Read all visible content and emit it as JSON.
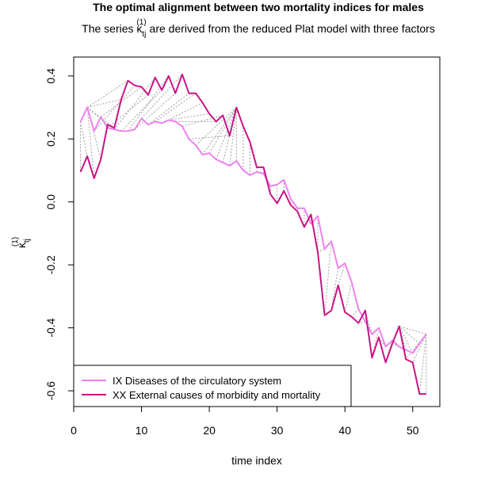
{
  "chart_data": {
    "type": "line",
    "title": "The optimal alignment between two mortality indices for males",
    "subtitle_prefix": "The series ",
    "subtitle_suffix": " are derived from the reduced Plat model with three factors",
    "kappa_symbol": "κ",
    "kappa_subscript": "tj",
    "kappa_superscript": "(1)",
    "xlabel": "time index",
    "xlim": [
      0,
      54
    ],
    "ylim": [
      -0.65,
      0.46
    ],
    "xticks": [
      0,
      10,
      20,
      30,
      40,
      50
    ],
    "yticks": [
      -0.6,
      -0.4,
      -0.2,
      0.0,
      0.2,
      0.4
    ],
    "ytick_labels": [
      "-0.6",
      "-0.4",
      "-0.2",
      "0.0",
      "0.2",
      "0.4"
    ],
    "grid": false,
    "legend_position": "bottom-left",
    "series": [
      {
        "name": "IX Diseases of the circulatory system",
        "color": "#ee82ee",
        "x": [
          1,
          2,
          3,
          4,
          5,
          6,
          7,
          8,
          9,
          10,
          11,
          12,
          13,
          14,
          15,
          16,
          17,
          18,
          19,
          20,
          21,
          22,
          23,
          24,
          25,
          26,
          27,
          28,
          29,
          30,
          31,
          32,
          33,
          34,
          35,
          36,
          37,
          38,
          39,
          40,
          41,
          42,
          43,
          44,
          45,
          46,
          47,
          48,
          49,
          50,
          51,
          52
        ],
        "values": [
          0.255,
          0.3,
          0.225,
          0.27,
          0.235,
          0.23,
          0.225,
          0.225,
          0.23,
          0.265,
          0.245,
          0.255,
          0.25,
          0.26,
          0.255,
          0.24,
          0.2,
          0.18,
          0.15,
          0.155,
          0.135,
          0.125,
          0.115,
          0.13,
          0.1,
          0.085,
          0.095,
          0.09,
          0.05,
          0.055,
          0.07,
          0.01,
          -0.02,
          -0.02,
          -0.07,
          -0.045,
          -0.15,
          -0.125,
          -0.21,
          -0.195,
          -0.255,
          -0.34,
          -0.38,
          -0.42,
          -0.4,
          -0.46,
          -0.44,
          -0.46,
          -0.47,
          -0.48,
          -0.45,
          -0.42
        ]
      },
      {
        "name": "XX External causes of morbidity and mortality",
        "color": "#c71585",
        "x": [
          1,
          2,
          3,
          4,
          5,
          6,
          7,
          8,
          9,
          10,
          11,
          12,
          13,
          14,
          15,
          16,
          17,
          18,
          19,
          20,
          21,
          22,
          23,
          24,
          25,
          26,
          27,
          28,
          29,
          30,
          31,
          32,
          33,
          34,
          35,
          36,
          37,
          38,
          39,
          40,
          41,
          42,
          43,
          44,
          45,
          46,
          47,
          48,
          49,
          50,
          51,
          52
        ],
        "values": [
          0.095,
          0.145,
          0.075,
          0.135,
          0.245,
          0.235,
          0.325,
          0.385,
          0.37,
          0.365,
          0.34,
          0.395,
          0.355,
          0.4,
          0.345,
          0.405,
          0.345,
          0.345,
          0.315,
          0.28,
          0.255,
          0.275,
          0.21,
          0.3,
          0.24,
          0.19,
          0.11,
          0.11,
          0.025,
          -0.005,
          0.035,
          -0.01,
          -0.03,
          -0.08,
          -0.04,
          -0.16,
          -0.36,
          -0.345,
          -0.265,
          -0.35,
          -0.365,
          -0.385,
          -0.345,
          -0.495,
          -0.43,
          -0.51,
          -0.45,
          -0.395,
          -0.5,
          -0.51,
          -0.61,
          -0.61
        ]
      }
    ],
    "alignment_pairs": [
      [
        1,
        1
      ],
      [
        1,
        2
      ],
      [
        2,
        3
      ],
      [
        2,
        4
      ],
      [
        2,
        5
      ],
      [
        2,
        6
      ],
      [
        2,
        7
      ],
      [
        2,
        8
      ],
      [
        3,
        9
      ],
      [
        4,
        10
      ],
      [
        5,
        11
      ],
      [
        6,
        12
      ],
      [
        7,
        13
      ],
      [
        8,
        14
      ],
      [
        9,
        15
      ],
      [
        10,
        16
      ],
      [
        11,
        17
      ],
      [
        12,
        18
      ],
      [
        13,
        19
      ],
      [
        14,
        20
      ],
      [
        15,
        21
      ],
      [
        16,
        22
      ],
      [
        17,
        23
      ],
      [
        18,
        24
      ],
      [
        19,
        24
      ],
      [
        20,
        24
      ],
      [
        21,
        24
      ],
      [
        22,
        24
      ],
      [
        23,
        24
      ],
      [
        24,
        24
      ],
      [
        25,
        25
      ],
      [
        26,
        26
      ],
      [
        27,
        27
      ],
      [
        28,
        28
      ],
      [
        29,
        29
      ],
      [
        30,
        30
      ],
      [
        31,
        31
      ],
      [
        32,
        32
      ],
      [
        33,
        33
      ],
      [
        34,
        34
      ],
      [
        35,
        35
      ],
      [
        36,
        36
      ],
      [
        37,
        36
      ],
      [
        38,
        37
      ],
      [
        39,
        38
      ],
      [
        40,
        39
      ],
      [
        41,
        40
      ],
      [
        42,
        41
      ],
      [
        43,
        42
      ],
      [
        44,
        43
      ],
      [
        45,
        44
      ],
      [
        46,
        45
      ],
      [
        47,
        46
      ],
      [
        48,
        47
      ],
      [
        49,
        48
      ],
      [
        50,
        48
      ],
      [
        51,
        48
      ],
      [
        52,
        48
      ],
      [
        52,
        49
      ],
      [
        52,
        50
      ],
      [
        52,
        51
      ],
      [
        52,
        52
      ]
    ]
  }
}
